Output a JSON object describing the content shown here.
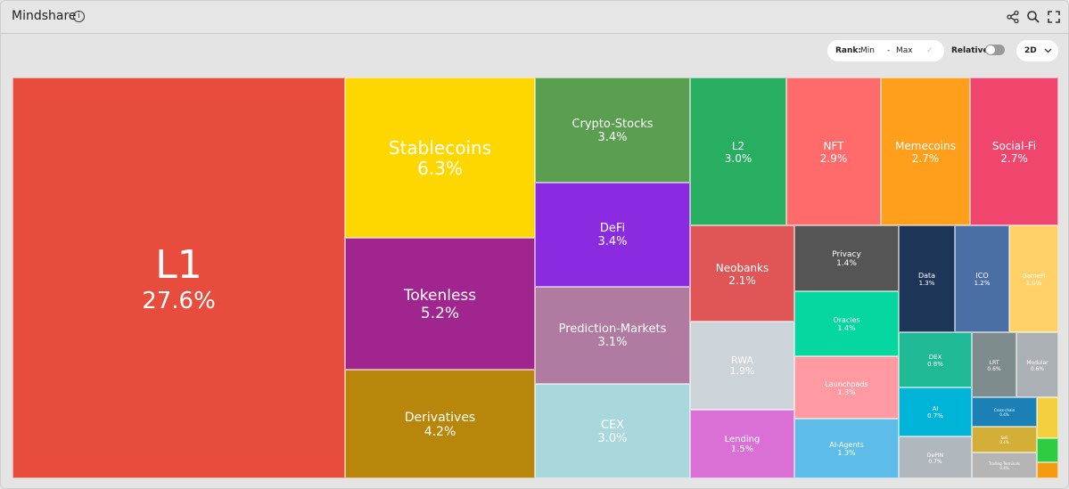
{
  "header": {
    "title": "Mindshare",
    "info_symbol": "i",
    "share_icon": "share-icon",
    "search_icon": "search-icon",
    "fullscreen_icon": "fullscreen-icon"
  },
  "controls": {
    "rank_label": "Rank:",
    "rank_min": "Min",
    "rank_separator": "-",
    "rank_max": "Max",
    "confirm_symbol": "✓",
    "relative_label": "Relative",
    "relative_on": false,
    "range_value": "2D"
  },
  "colors": {
    "L1": "#e84c3d",
    "Stablecoins": "#ffd700",
    "Tokenless": "#a1258f",
    "Derivatives": "#b8860b",
    "Crypto-Stocks": "#5a9e4f",
    "DeFi": "#8a2be2",
    "Prediction-Markets": "#b07aa1",
    "CEX": "#a8d8dc",
    "L2": "#27ae60",
    "NFT": "#ff6b6b",
    "Memecoins": "#ff9f1c",
    "Social-Fi": "#f0466e",
    "Neobanks": "#e05555",
    "RWA": "#ccd3d9",
    "Lending": "#da70d6",
    "Privacy": "#555555",
    "Oracles": "#06d6a0",
    "Launchpads": "#ff9aa2",
    "AI-Agents": "#5ebde8",
    "Data": "#1d3557",
    "ICO": "#4a6fa5",
    "GameFi": "#ffd166",
    "DEX": "#1fb996",
    "AI": "#00b4d8",
    "DePIN": "#b0b8bd",
    "LRT": "#7f8c8d",
    "Modular": "#aab0b3",
    "Cross-chain": "#1a80b6",
    "SoFi": "#d4af37",
    "Trading Terminals": "#b5b5b5",
    "Yellow-small": "#f4d03f",
    "Green-small": "#2ecc40",
    "Orange-small": "#f39c12"
  },
  "chart_data": {
    "type": "treemap",
    "title": "Mindshare",
    "unit": "%",
    "items": [
      {
        "name": "L1",
        "value": 27.6
      },
      {
        "name": "Stablecoins",
        "value": 6.3
      },
      {
        "name": "Tokenless",
        "value": 5.2
      },
      {
        "name": "Derivatives",
        "value": 4.2
      },
      {
        "name": "Crypto-Stocks",
        "value": 3.4
      },
      {
        "name": "DeFi",
        "value": 3.4
      },
      {
        "name": "Prediction-Markets",
        "value": 3.1
      },
      {
        "name": "CEX",
        "value": 3.0
      },
      {
        "name": "L2",
        "value": 3.0
      },
      {
        "name": "NFT",
        "value": 2.9
      },
      {
        "name": "Memecoins",
        "value": 2.7
      },
      {
        "name": "Social-Fi",
        "value": 2.7
      },
      {
        "name": "Neobanks",
        "value": 2.1
      },
      {
        "name": "RWA",
        "value": 1.9
      },
      {
        "name": "Lending",
        "value": 1.5
      },
      {
        "name": "Privacy",
        "value": 1.4
      },
      {
        "name": "Oracles",
        "value": 1.4
      },
      {
        "name": "Launchpads",
        "value": 1.3
      },
      {
        "name": "AI-Agents",
        "value": 1.3
      },
      {
        "name": "Data",
        "value": 1.3
      },
      {
        "name": "ICO",
        "value": 1.2
      },
      {
        "name": "GameFi",
        "value": 1.0
      },
      {
        "name": "DEX",
        "value": 0.8
      },
      {
        "name": "AI",
        "value": 0.7
      },
      {
        "name": "DePIN",
        "value": 0.7
      },
      {
        "name": "LRT",
        "value": 0.6
      },
      {
        "name": "Modular",
        "value": 0.6
      },
      {
        "name": "Cross-chain",
        "value": 0.4
      },
      {
        "name": "SoFi",
        "value": 0.4
      },
      {
        "name": "Trading Terminals",
        "value": 0.4
      }
    ]
  }
}
